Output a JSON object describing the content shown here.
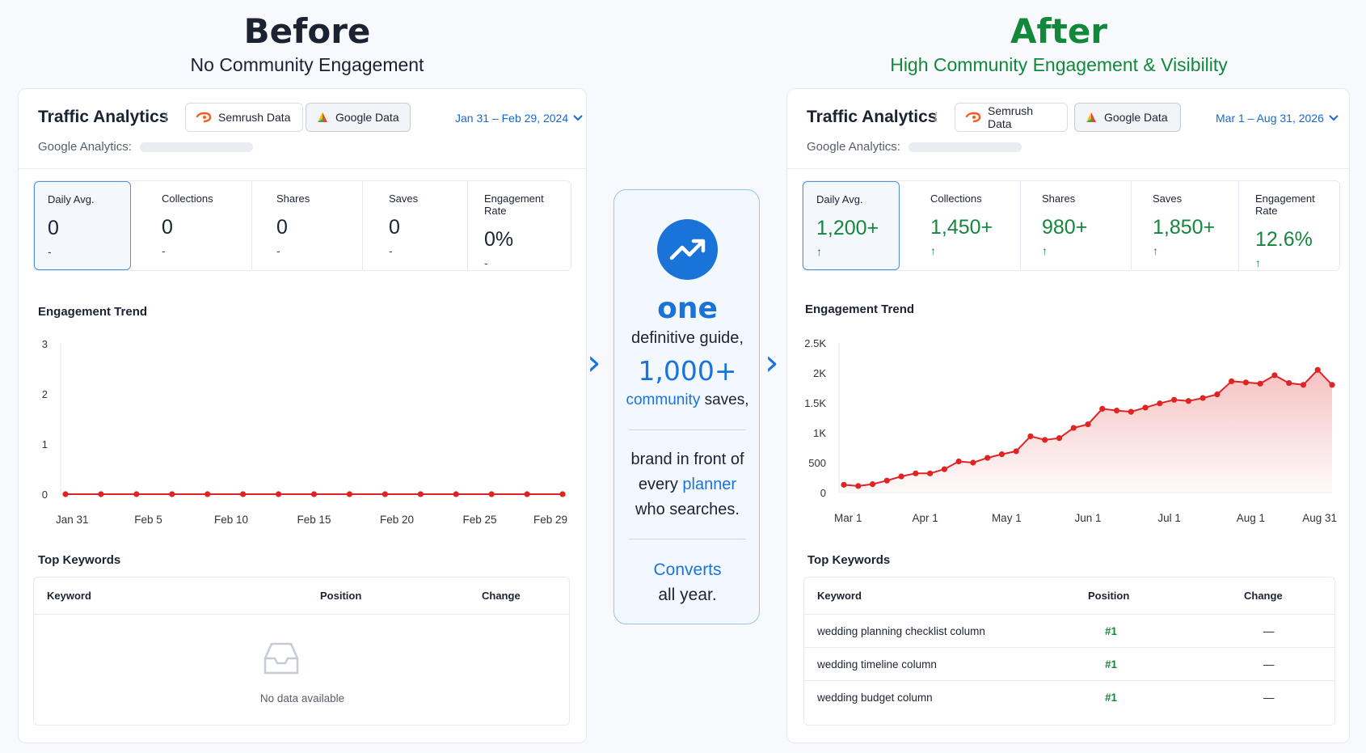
{
  "before": {
    "heading": "Before",
    "subheading": "No Community Engagement",
    "panel": {
      "title": "Traffic Analytics",
      "info_icon": "i",
      "tabs": [
        {
          "label": "Semrush Data"
        },
        {
          "label": "Google Data"
        }
      ],
      "date_range": "Jan 31 – Feb 29, 2024",
      "ga_label": "Google Analytics:",
      "metrics": [
        {
          "label": "Daily Avg.",
          "value": "0",
          "sub": "-"
        },
        {
          "label": "Collections",
          "value": "0",
          "sub": "-"
        },
        {
          "label": "Shares",
          "value": "0",
          "sub": "-"
        },
        {
          "label": "Saves",
          "value": "0",
          "sub": "-"
        },
        {
          "label": "Engagement Rate",
          "value": "0%",
          "sub": "-"
        }
      ],
      "trend_title": "Engagement Trend",
      "keywords_title": "Top Keywords",
      "kw_columns": {
        "keyword": "Keyword",
        "position": "Position",
        "change": "Change"
      },
      "empty_text": "No data available"
    }
  },
  "after": {
    "heading": "After",
    "subheading": "High Community Engagement & Visibility",
    "panel": {
      "title": "Traffic Analytics",
      "info_icon": "i",
      "tabs": [
        {
          "label": "Semrush Data"
        },
        {
          "label": "Google Data"
        }
      ],
      "date_range": "Mar 1 – Aug 31, 2026",
      "ga_label": "Google Analytics:",
      "metrics": [
        {
          "label": "Daily Avg.",
          "value": "1,200+",
          "sub": "↑"
        },
        {
          "label": "Collections",
          "value": "1,450+",
          "sub": "↑"
        },
        {
          "label": "Shares",
          "value": "980+",
          "sub": "↑"
        },
        {
          "label": "Saves",
          "value": "1,850+",
          "sub": "↑"
        },
        {
          "label": "Engagement Rate",
          "value": "12.6%",
          "sub": "↑"
        }
      ],
      "trend_title": "Engagement Trend",
      "keywords_title": "Top Keywords",
      "kw_columns": {
        "keyword": "Keyword",
        "position": "Position",
        "change": "Change"
      },
      "keywords": [
        {
          "keyword": "wedding planning checklist column",
          "position": "#1",
          "change": "—"
        },
        {
          "keyword": "wedding timeline column",
          "position": "#1",
          "change": "—"
        },
        {
          "keyword": "wedding budget column",
          "position": "#1",
          "change": "—"
        }
      ]
    }
  },
  "center": {
    "word_one": "one",
    "line_guide": "definitive guide,",
    "big_number": "1,000+",
    "community": "community",
    "saves": "saves,",
    "brand_line1": "brand in front of",
    "every": "every",
    "planner": "planner",
    "who_searches": "who searches.",
    "converts": "Converts",
    "all_year": "all year.",
    "icon": "trending-up-icon"
  },
  "chart_data": [
    {
      "type": "line",
      "x": [
        "Jan 31",
        "Feb 2",
        "Feb 4",
        "Feb 6",
        "Feb 8",
        "Feb 10",
        "Feb 12",
        "Feb 14",
        "Feb 16",
        "Feb 18",
        "Feb 20",
        "Feb 22",
        "Feb 24",
        "Feb 26",
        "Feb 29"
      ],
      "xticks": [
        "Jan 31",
        "Feb 5",
        "Feb 10",
        "Feb 15",
        "Feb 20",
        "Feb 25",
        "Feb 29"
      ],
      "series": [
        {
          "values": [
            0,
            0,
            0,
            0,
            0,
            0,
            0,
            0,
            0,
            0,
            0,
            0,
            0,
            0,
            0
          ]
        }
      ],
      "yticks": [
        "0",
        "1",
        "2",
        "3"
      ],
      "ylim": [
        0,
        3
      ],
      "color": "#e02424",
      "title": "Engagement Trend",
      "grid": false
    },
    {
      "type": "area",
      "series": [
        {
          "values": [
            130,
            110,
            140,
            200,
            270,
            320,
            320,
            390,
            520,
            500,
            580,
            640,
            690,
            940,
            880,
            910,
            1080,
            1140,
            1400,
            1370,
            1350,
            1420,
            1490,
            1550,
            1530,
            1580,
            1640,
            1860,
            1840,
            1820,
            1960,
            1830,
            1800,
            2050,
            1800
          ]
        }
      ],
      "xticks": [
        "Mar 1",
        "Apr 1",
        "May 1",
        "Jun 1",
        "Jul 1",
        "Aug 1",
        "Aug 31"
      ],
      "yticks": [
        "0",
        "500",
        "1K",
        "1.5K",
        "2K",
        "2.5K"
      ],
      "ylim": [
        0,
        2500
      ],
      "color": "#e02424",
      "title": "Engagement Trend",
      "grid": false
    }
  ]
}
